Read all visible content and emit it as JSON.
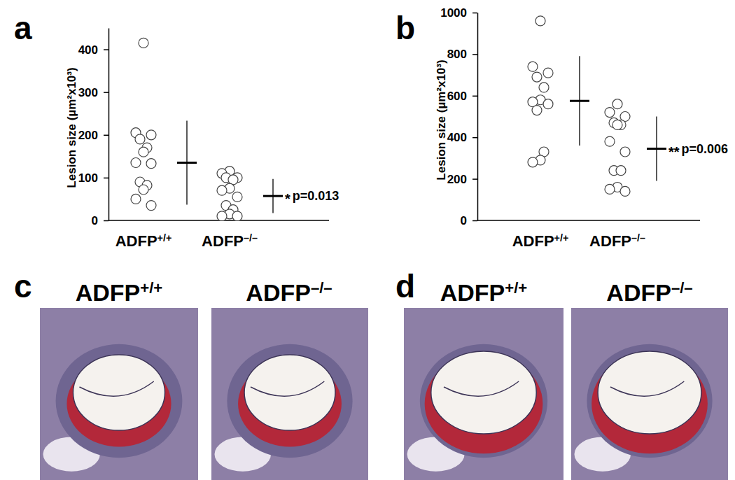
{
  "chart_data": [
    {
      "type": "scatter",
      "title": "a",
      "y_label": "Lesion size (µm²x10³)",
      "categories": [
        "ADFP+/+",
        "ADFP–/–"
      ],
      "values": [
        [
          415,
          205,
          200,
          190,
          170,
          160,
          135,
          133,
          90,
          82,
          72,
          50,
          35
        ],
        [
          115,
          110,
          100,
          100,
          95,
          75,
          70,
          55,
          35,
          25,
          15,
          10,
          10
        ]
      ],
      "means": [
        135,
        57
      ],
      "errors": [
        98,
        40
      ],
      "annotations": [
        "*",
        "p=0.013"
      ],
      "ylim": [
        0,
        450
      ],
      "yticks": [
        0,
        100,
        200,
        300,
        400
      ],
      "grid": false
    },
    {
      "type": "scatter",
      "title": "b",
      "y_label": "Lesion size (µm²x10³)",
      "categories": [
        "ADFP+/+",
        "ADFP–/–"
      ],
      "values": [
        [
          960,
          740,
          710,
          690,
          640,
          580,
          570,
          560,
          530,
          330,
          290,
          280
        ],
        [
          560,
          520,
          500,
          470,
          460,
          460,
          380,
          330,
          240,
          240,
          160,
          150,
          140
        ]
      ],
      "means": [
        575,
        345
      ],
      "errors": [
        215,
        155
      ],
      "annotations": [
        "**",
        "p=0.006"
      ],
      "ylim": [
        0,
        1000
      ],
      "yticks": [
        0,
        200,
        400,
        600,
        800,
        1000
      ],
      "grid": false
    }
  ],
  "panels": [
    {
      "label": "c",
      "titles": [
        "ADFP+/+",
        "ADFP–/–"
      ]
    },
    {
      "label": "d",
      "titles": [
        "ADFP+/+",
        "ADFP–/–"
      ]
    }
  ]
}
